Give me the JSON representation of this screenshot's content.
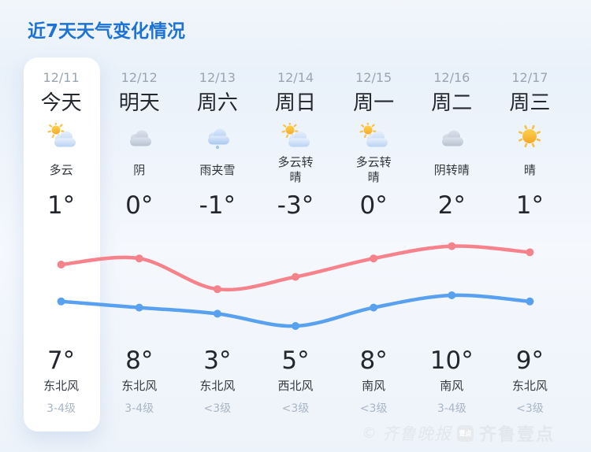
{
  "title": "近7天天气变化情况",
  "days": [
    {
      "date": "12/11",
      "day": "今天",
      "icon": "partly-cloudy",
      "condition": "多云",
      "temp_top": "1°",
      "temp_bottom": "7°",
      "wind": "东北风",
      "wind_level": "3-4级",
      "highlight": true
    },
    {
      "date": "12/12",
      "day": "明天",
      "icon": "cloudy",
      "condition": "阴",
      "temp_top": "0°",
      "temp_bottom": "8°",
      "wind": "东北风",
      "wind_level": "3-4级",
      "highlight": false
    },
    {
      "date": "12/13",
      "day": "周六",
      "icon": "sleet",
      "condition": "雨夹雪",
      "temp_top": "-1°",
      "temp_bottom": "3°",
      "wind": "东北风",
      "wind_level": "<3级",
      "highlight": false
    },
    {
      "date": "12/14",
      "day": "周日",
      "icon": "partly-cloudy",
      "condition": "多云转晴",
      "temp_top": "-3°",
      "temp_bottom": "5°",
      "wind": "西北风",
      "wind_level": "<3级",
      "highlight": false
    },
    {
      "date": "12/15",
      "day": "周一",
      "icon": "partly-cloudy",
      "condition": "多云转晴",
      "temp_top": "0°",
      "temp_bottom": "8°",
      "wind": "南风",
      "wind_level": "<3级",
      "highlight": false
    },
    {
      "date": "12/16",
      "day": "周二",
      "icon": "cloudy",
      "condition": "阴转晴",
      "temp_top": "2°",
      "temp_bottom": "10°",
      "wind": "南风",
      "wind_level": "3-4级",
      "highlight": false
    },
    {
      "date": "12/17",
      "day": "周三",
      "icon": "sunny",
      "condition": "晴",
      "temp_top": "1°",
      "temp_bottom": "9°",
      "wind": "东北风",
      "wind_level": "<3级",
      "highlight": false
    }
  ],
  "chart_data": {
    "type": "line",
    "categories": [
      "12/11",
      "12/12",
      "12/13",
      "12/14",
      "12/15",
      "12/16",
      "12/17"
    ],
    "series": [
      {
        "name": "red-line (bottom temperature row)",
        "color": "#f8828b",
        "values": [
          7,
          8,
          3,
          5,
          8,
          10,
          9
        ]
      },
      {
        "name": "blue-line (top temperature row)",
        "color": "#58a0f0",
        "values": [
          1,
          0,
          -1,
          -3,
          0,
          2,
          1
        ]
      }
    ],
    "title": "近7天天气变化情况",
    "xlabel": "",
    "ylabel": "",
    "ylim": [
      -4,
      11
    ],
    "grid": false,
    "legend": "none",
    "markers": "dots"
  },
  "watermark": {
    "copyright": "©",
    "brand_script": "齐鲁晚报",
    "badge": "壹点",
    "brand": "齐鲁壹点"
  },
  "colors": {
    "title_blue": "#1d73d4",
    "red_line": "#f8828b",
    "blue_line": "#58a0f0",
    "card_bg": "#ffffff",
    "page_bg": "#eef3fa"
  }
}
